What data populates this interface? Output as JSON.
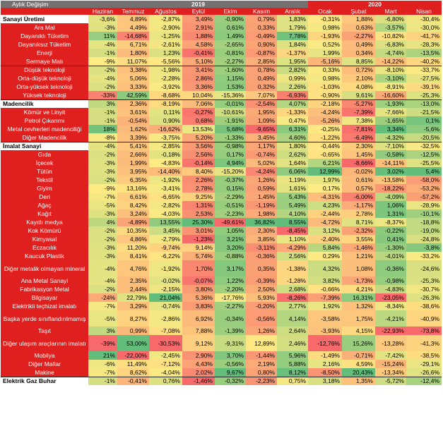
{
  "corner_label": "Aylık Değişim",
  "year_groups": [
    {
      "label": "2019",
      "span": 7
    },
    {
      "label": "2020",
      "span": 4
    }
  ],
  "months": [
    "Haziran",
    "Temmuz",
    "Ağustos",
    "Eylül",
    "Ekim",
    "Kasım",
    "Aralık",
    "Ocak",
    "Şubat",
    "Mart",
    "Nisan"
  ],
  "rows": [
    {
      "label": "Sanayi Üretimi",
      "bold": true,
      "values": [
        "-3,6%",
        "4,89%",
        "-2,87%",
        "3,49%",
        "-0,90%",
        "0,79%",
        "1,83%",
        "-0,31%",
        "1,88%",
        "-6,80%",
        "-30,4%"
      ]
    },
    {
      "label": "Ara Mal",
      "values": [
        "-3%",
        "4,49%",
        "-2,90%",
        "2,91%",
        "0,61%",
        "0,33%",
        "1,79%",
        "0,98%",
        "0,63%",
        "-3,57%",
        "-30,0%"
      ]
    },
    {
      "label": "Dayanıklı Tüketim",
      "values": [
        "11%",
        "-14,68%",
        "-1,25%",
        "1,88%",
        "1,49%",
        "-0,49%",
        "7,78%",
        "-1,93%",
        "-2,27%",
        "-10,82%",
        "-41,7%"
      ]
    },
    {
      "label": "Dayanıksız Tüketim",
      "values": [
        "-4%",
        "6,71%",
        "-2,61%",
        "4,58%",
        "-2,65%",
        "0,90%",
        "1,84%",
        "0,52%",
        "0,49%",
        "-6,83%",
        "-28,3%"
      ]
    },
    {
      "label": "Enerji",
      "values": [
        "-1%",
        "1,80%",
        "1,23%",
        "-0,41%",
        "-0,81%",
        "-0,87%",
        "-1,37%",
        "1,99%",
        "0,34%",
        "-4,74%",
        "-13,5%"
      ]
    },
    {
      "label": "Sermaye Malı",
      "values": [
        "-9%",
        "11,07%",
        "-5,56%",
        "5,10%",
        "-2,27%",
        "2,85%",
        "1,95%",
        "-5,16%",
        "8,85%",
        "-14,22%",
        "-40,2%"
      ]
    },
    {
      "label": "Düşük teknoloji",
      "sep": true,
      "values": [
        "-2%",
        "3,38%",
        "-1,98%",
        "3,41%",
        "-1,60%",
        "0,78%",
        "2,82%",
        "0,33%",
        "0,72%",
        "-8,10%",
        "-33,7%"
      ]
    },
    {
      "label": "Orta-düşük teknoloji",
      "values": [
        "-4%",
        "5,06%",
        "-2,28%",
        "2,86%",
        "1,15%",
        "0,49%",
        "0,99%",
        "0,98%",
        "2,10%",
        "-3,10%",
        "-27,5%"
      ]
    },
    {
      "label": "Orta-yüksek teknoloji",
      "values": [
        "-2%",
        "3,33%",
        "-3,92%",
        "3,36%",
        "1,53%",
        "0,32%",
        "2,26%",
        "-1,03%",
        "4,08%",
        "-8,91%",
        "-39,1%"
      ]
    },
    {
      "label": "Yüksek teknoloji",
      "values": [
        "-33%",
        "42,59%",
        "-8,68%",
        "10,04%",
        "-15,36%",
        "7,07%",
        "-6,93%",
        "-0,90%",
        "9,61%",
        "-16,60%",
        "-25,3%"
      ]
    },
    {
      "label": "Madencilik",
      "bold": true,
      "sep": true,
      "values": [
        "3%",
        "2,36%",
        "-8,19%",
        "7,06%",
        "-0,01%",
        "-2,54%",
        "4,07%",
        "-2,18%",
        "-5,27%",
        "-1,93%",
        "-13,0%"
      ]
    },
    {
      "label": "Kömür ve Linyit",
      "values": [
        "-1%",
        "3,61%",
        "0,11%",
        "-0,27%",
        "-10,61%",
        "1,95%",
        "-1,33%",
        "-4,24%",
        "-7,39%",
        "-7,66%",
        "-21,5%"
      ]
    },
    {
      "label": "Petrol Çıkarımı",
      "values": [
        "-1%",
        "-0,54%",
        "0,90%",
        "0,68%",
        "-1,91%",
        "1,09%",
        "0,47%",
        "-5,26%",
        "7,38%",
        "-1,65%",
        "0,1%"
      ]
    },
    {
      "label": "Metal cevherleri madenciliği",
      "values": [
        "18%",
        "1,62%",
        "-16,62%",
        "13,53%",
        "5,68%",
        "-9,65%",
        "6,31%",
        "-0,25%",
        "-7,81%",
        "3,34%",
        "-5,6%"
      ]
    },
    {
      "label": "Diğer Madencilik",
      "values": [
        "-8%",
        "3,39%",
        "-3,75%",
        "5,20%",
        "-1,33%",
        "3,45%",
        "4,60%",
        "-1,22%",
        "-6,49%",
        "-4,32%",
        "-20,5%"
      ]
    },
    {
      "label": "İmalat Sanayi",
      "bold": true,
      "sep": true,
      "values": [
        "-4%",
        "5,41%",
        "-2,85%",
        "3,56%",
        "-0,98%",
        "1,17%",
        "1,80%",
        "-0,44%",
        "2,30%",
        "-7,10%",
        "-32,5%"
      ]
    },
    {
      "label": "Gıda",
      "values": [
        "-2%",
        "2,66%",
        "-0,18%",
        "2,56%",
        "0,17%",
        "-0,74%",
        "2,62%",
        "-0,65%",
        "1,45%",
        "-0,58%",
        "-12,5%"
      ]
    },
    {
      "label": "İçecek",
      "values": [
        "-3%",
        "1,99%",
        "-4,83%",
        "-0,14%",
        "4,94%",
        "5,02%",
        "1,64%",
        "6,21%",
        "-8,66%",
        "-14,11%",
        "-25,5%"
      ]
    },
    {
      "label": "Tütün",
      "values": [
        "-3%",
        "3,95%",
        "-14,40%",
        "8,40%",
        "-15,20%",
        "-4,24%",
        "6,06%",
        "12,99%",
        "-0,02%",
        "3,02%",
        "5,4%"
      ]
    },
    {
      "label": "Tekstil",
      "values": [
        "-2%",
        "6,35%",
        "-1,92%",
        "2,26%",
        "-0,37%",
        "1,26%",
        "1,19%",
        "1,97%",
        "0,61%",
        "-13,58%",
        "-58,0%"
      ]
    },
    {
      "label": "Giyim",
      "values": [
        "-9%",
        "13,16%",
        "-3,41%",
        "2,78%",
        "0,15%",
        "0,59%",
        "1,61%",
        "0,17%",
        "0,57%",
        "-18,22%",
        "-53,2%"
      ]
    },
    {
      "label": "Deri",
      "values": [
        "-7%",
        "6,61%",
        "-6,65%",
        "9,25%",
        "-2,29%",
        "1,45%",
        "5,43%",
        "-4,31%",
        "-6,00%",
        "-4,09%",
        "-57,2%"
      ]
    },
    {
      "label": "Ağaç",
      "values": [
        "-5%",
        "8,42%",
        "-2,82%",
        "1,31%",
        "-0,51%",
        "-1,19%",
        "5,49%",
        "4,23%",
        "-1,17%",
        "1,06%",
        "-28,9%"
      ]
    },
    {
      "label": "Kağıt",
      "values": [
        "-3%",
        "3,24%",
        "-4,03%",
        "2,53%",
        "-2,23%",
        "1,98%",
        "4,10%",
        "-2,44%",
        "2,78%",
        "1,31%",
        "-10,1%"
      ]
    },
    {
      "label": "Kayıtlı medya",
      "values": [
        "4%",
        "-4,89%",
        "13,55%",
        "25,30%",
        "-49,61%",
        "36,82%",
        "8,55%",
        "-4,72%",
        "8,71%",
        "-8,37%",
        "-18,8%"
      ]
    },
    {
      "label": "Kok Kömürü",
      "values": [
        "-2%",
        "10,35%",
        "3,45%",
        "3,01%",
        "1,05%",
        "2,30%",
        "-8,45%",
        "3,12%",
        "-2,32%",
        "-0,22%",
        "-19,0%"
      ]
    },
    {
      "label": "Kimyasal",
      "values": [
        "-2%",
        "4,86%",
        "-2,79%",
        "-1,23%",
        "3,21%",
        "3,85%",
        "1,10%",
        "-2,40%",
        "3,55%",
        "0,41%",
        "-24,8%"
      ]
    },
    {
      "label": "Eczacılık",
      "values": [
        "-3%",
        "11,20%",
        "-9,74%",
        "9,14%",
        "3,20%",
        "-3,11%",
        "-4,29%",
        "5,84%",
        "-1,46%",
        "-1,30%",
        "-3,8%"
      ]
    },
    {
      "label": "Kaucuk Plastik",
      "values": [
        "-3%",
        "8,41%",
        "-6,22%",
        "5,74%",
        "-0,88%",
        "-0,36%",
        "2,56%",
        "0,29%",
        "1,21%",
        "-4,01%",
        "-33,2%"
      ]
    },
    {
      "label": "Diğer metalik olmayan mineral",
      "tall": true,
      "values": [
        "-4%",
        "4,76%",
        "-1,92%",
        "1,70%",
        "3,17%",
        "0,35%",
        "-1,38%",
        "4,32%",
        "1,08%",
        "-0,36%",
        "-24,6%"
      ]
    },
    {
      "label": "Ana Metal Sanayi",
      "values": [
        "-4%",
        "2,35%",
        "-0,02%",
        "-0,07%",
        "1,22%",
        "-0,39%",
        "-1,28%",
        "3,82%",
        "-1,73%",
        "-0,98%",
        "-25,3%"
      ]
    },
    {
      "label": "Fabrikasyon Metal",
      "values": [
        "-2%",
        "2,44%",
        "-2,15%",
        "3,80%",
        "-2,20%",
        "2,50%",
        "2,68%",
        "-0,66%",
        "4,21%",
        "-4,83%",
        "-30,7%"
      ]
    },
    {
      "label": "Bilgisayar",
      "values": [
        "-24%",
        "22,79%",
        "21,04%",
        "5,36%",
        "-17,76%",
        "5,93%",
        "-8,26%",
        "-7,39%",
        "16,31%",
        "-23,05%",
        "-26,3%"
      ]
    },
    {
      "label": "Elektrikli teçhizat imalatı",
      "values": [
        "-7%",
        "3,29%",
        "-0,74%",
        "3,83%",
        "-2,27%",
        "-0,20%",
        "2,77%",
        "1,92%",
        "1,32%",
        "-8,34%",
        "-38,6%"
      ]
    },
    {
      "label": "Başka yerde sınıflandırılmamış",
      "tall": true,
      "values": [
        "-5%",
        "8,27%",
        "-2,86%",
        "6,92%",
        "-0,34%",
        "-0,56%",
        "4,14%",
        "-3,58%",
        "1,75%",
        "-4,21%",
        "-40,9%"
      ]
    },
    {
      "label": "Taşıt",
      "values": [
        "3%",
        "0,99%",
        "-7,08%",
        "7,88%",
        "-1,39%",
        "1,26%",
        "2,64%",
        "-3,93%",
        "4,15%",
        "-22,93%",
        "-73,8%"
      ]
    },
    {
      "label": "Diğer ulaşım araçlarının imalatı",
      "tall": true,
      "values": [
        "-39%",
        "53,00%",
        "-30,53%",
        "9,12%",
        "-9,31%",
        "12,89%",
        "2,46%",
        "-12,76%",
        "15,26%",
        "-13,28%",
        "-41,3%"
      ]
    },
    {
      "label": "Mobilya",
      "values": [
        "21%",
        "-22,00%",
        "-2,45%",
        "2,90%",
        "3,70%",
        "-1,44%",
        "5,96%",
        "-1,49%",
        "-0,71%",
        "-7,42%",
        "-38,5%"
      ]
    },
    {
      "label": "Diğer Mallar",
      "values": [
        "-6%",
        "11,49%",
        "-7,12%",
        "4,43%",
        "-0,56%",
        "2,19%",
        "5,88%",
        "2,16%",
        "4,59%",
        "-15,24%",
        "-29,1%"
      ]
    },
    {
      "label": "Makine",
      "values": [
        "-7%",
        "8,62%",
        "-4,04%",
        "2,02%",
        "9,67%",
        "0,80%",
        "8,12%",
        "-8,50%",
        "20,43%",
        "-13,34%",
        "-26,6%"
      ]
    },
    {
      "label": "Elektrik Gaz Buhar",
      "bold": true,
      "sep": true,
      "values": [
        "-1%",
        "-0,41%",
        "0,76%",
        "-1,46%",
        "-0,32%",
        "-2,23%",
        "0,75%",
        "3,18%",
        "1,35%",
        "-5,72%",
        "-12,4%"
      ]
    }
  ]
}
